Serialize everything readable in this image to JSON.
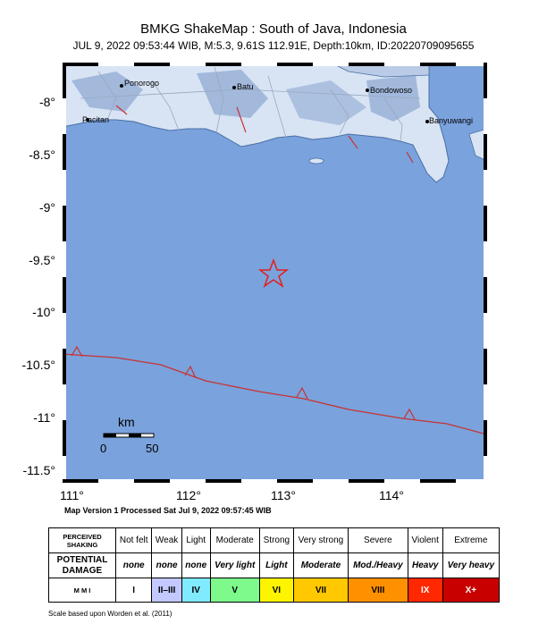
{
  "header": {
    "title": "BMKG ShakeMap : South of Java, Indonesia",
    "subtitle": "JUL 9, 2022 09:53:44 WIB, M:5.3, 9.61S 112.91E, Depth:10km, ID:20220709095655"
  },
  "map": {
    "lat_ticks": [
      "-8°",
      "-8.5°",
      "-9°",
      "-9.5°",
      "-10°",
      "-10.5°",
      "-11°",
      "-11.5°"
    ],
    "lon_ticks": [
      "111°",
      "112°",
      "113°",
      "114°"
    ],
    "cities": [
      {
        "name": "Ponorogo"
      },
      {
        "name": "Batu"
      },
      {
        "name": "Bondowoso"
      },
      {
        "name": "Pacitan"
      },
      {
        "name": "Banyuwangi"
      }
    ],
    "scale_bar": {
      "unit": "km",
      "start": "0",
      "end": "50"
    },
    "epicenter": {
      "lat": -9.61,
      "lon": 112.91
    },
    "colors": {
      "ocean": "#7aa2dc",
      "trench": "#c83232",
      "epicenter": "#e02020"
    }
  },
  "footer": {
    "processed": "Map Version 1 Processed Sat Jul  9, 2022 09:57:45 WIB",
    "scale_note": "Scale based upon Worden et al. (2011)"
  },
  "legend": {
    "row_headers": [
      "PERCEIVED SHAKING",
      "POTENTIAL DAMAGE",
      "M M I"
    ],
    "shaking": [
      "Not felt",
      "Weak",
      "Light",
      "Moderate",
      "Strong",
      "Very strong",
      "Severe",
      "Violent",
      "Extreme"
    ],
    "damage": [
      "none",
      "none",
      "none",
      "Very light",
      "Light",
      "Moderate",
      "Mod./Heavy",
      "Heavy",
      "Very heavy"
    ],
    "mmi": [
      "I",
      "II–III",
      "IV",
      "V",
      "VI",
      "VII",
      "VIII",
      "IX",
      "X+"
    ],
    "mmi_colors": [
      "#ffffff",
      "#c3c8ff",
      "#80eaff",
      "#7efa8c",
      "#fff400",
      "#ffc800",
      "#ff9100",
      "#ff2800",
      "#c80000"
    ]
  }
}
